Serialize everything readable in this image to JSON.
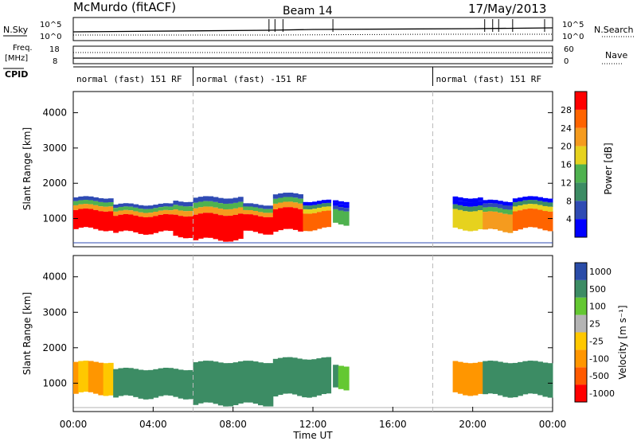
{
  "header": {
    "station": "McMurdo (fitACF)",
    "beam": "Beam 14",
    "date": "17/May/2013"
  },
  "top_panel": {
    "left_label": "N.Sky",
    "right_label": "N.Search",
    "left_ticks": [
      "10^5",
      "10^0"
    ],
    "right_ticks": [
      "10^5",
      "10^0"
    ]
  },
  "freq_panel": {
    "left_label_1": "Freq.",
    "left_label_2": "[MHz]",
    "left_ticks": [
      "18",
      "8"
    ],
    "right_label": "Nave",
    "right_ticks": [
      "60",
      "0"
    ]
  },
  "cpid": {
    "label": "CPID",
    "segments": [
      {
        "text": "normal (fast) 151 RF",
        "start": 0.0,
        "end": 6.0
      },
      {
        "text": "normal (fast) -151 RF",
        "start": 6.0,
        "end": 18.0
      },
      {
        "text": "normal (fast) 151 RF",
        "start": 18.0,
        "end": 24.0
      }
    ]
  },
  "x_axis": {
    "label": "Time UT",
    "ticks": [
      "00:00",
      "04:00",
      "08:00",
      "12:00",
      "16:00",
      "20:00",
      "00:00"
    ]
  },
  "colors": {
    "power": [
      "#0000ff",
      "#2f4bb4",
      "#3c8c64",
      "#4fb24f",
      "#e6d21e",
      "#f59b1e",
      "#ff6400",
      "#ff0000"
    ],
    "velocity": [
      "#ff0000",
      "#ff5a00",
      "#ff9600",
      "#ffc800",
      "#b4b4b4",
      "#64c832",
      "#3c8c64",
      "#2a4ca8"
    ]
  },
  "chart_data": [
    {
      "type": "heatmap",
      "name": "Power",
      "ylabel": "Slant Range [km]",
      "yticks": [
        1000,
        2000,
        3000,
        4000
      ],
      "ylim": [
        200,
        4600
      ],
      "xlim": [
        0,
        24
      ],
      "colorbar_label": "Power [dB]",
      "colorbar_ticks": [
        4,
        8,
        12,
        16,
        20,
        24,
        28
      ],
      "colorbar_range": [
        0,
        32
      ],
      "bands": [
        {
          "t0": 0.0,
          "t1": 2.0,
          "lo": 700,
          "hi": 1600,
          "core": 28
        },
        {
          "t0": 2.0,
          "t1": 5.0,
          "lo": 600,
          "hi": 1400,
          "core": 28
        },
        {
          "t0": 5.0,
          "t1": 6.0,
          "lo": 500,
          "hi": 1500,
          "core": 28
        },
        {
          "t0": 6.0,
          "t1": 8.5,
          "lo": 400,
          "hi": 1600,
          "core": 28
        },
        {
          "t0": 8.5,
          "t1": 10.0,
          "lo": 600,
          "hi": 1400,
          "core": 28
        },
        {
          "t0": 10.0,
          "t1": 11.5,
          "lo": 650,
          "hi": 1700,
          "core": 28
        },
        {
          "t0": 11.5,
          "t1": 12.9,
          "lo": 700,
          "hi": 1500,
          "core": 24
        },
        {
          "t0": 13.0,
          "t1": 13.8,
          "lo": 850,
          "hi": 1500,
          "core": 12
        },
        {
          "t0": 19.0,
          "t1": 20.5,
          "lo": 700,
          "hi": 1600,
          "core": 16
        },
        {
          "t0": 20.5,
          "t1": 22.0,
          "lo": 650,
          "hi": 1500,
          "core": 20
        },
        {
          "t0": 22.0,
          "t1": 24.0,
          "lo": 700,
          "hi": 1600,
          "core": 24
        }
      ]
    },
    {
      "type": "heatmap",
      "name": "Velocity",
      "ylabel": "Slant Range [km]",
      "yticks": [
        1000,
        2000,
        3000,
        4000
      ],
      "ylim": [
        200,
        4600
      ],
      "xlim": [
        0,
        24
      ],
      "colorbar_label": "Velocity [m s⁻¹]",
      "colorbar_ticks": [
        -1000,
        -500,
        -100,
        -25,
        25,
        100,
        500,
        1000
      ],
      "bands": [
        {
          "t0": 0.0,
          "t1": 2.0,
          "lo": 700,
          "hi": 1600,
          "v": -100
        },
        {
          "t0": 2.0,
          "t1": 6.0,
          "lo": 600,
          "hi": 1400,
          "v": 200
        },
        {
          "t0": 6.0,
          "t1": 10.0,
          "lo": 400,
          "hi": 1600,
          "v": 200
        },
        {
          "t0": 10.0,
          "t1": 12.9,
          "lo": 650,
          "hi": 1700,
          "v": 200
        },
        {
          "t0": 13.0,
          "t1": 13.8,
          "lo": 850,
          "hi": 1500,
          "v": 100
        },
        {
          "t0": 19.0,
          "t1": 20.5,
          "lo": 700,
          "hi": 1600,
          "v": -200
        },
        {
          "t0": 20.5,
          "t1": 24.0,
          "lo": 650,
          "hi": 1600,
          "v": 200
        }
      ]
    }
  ]
}
